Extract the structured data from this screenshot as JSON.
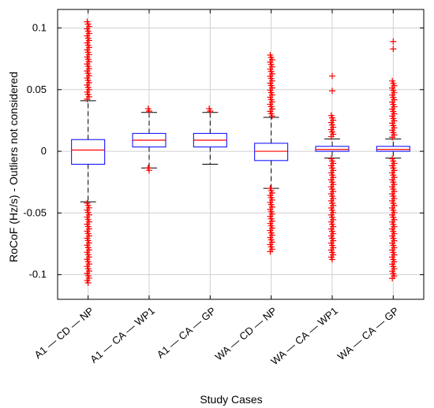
{
  "chart_data": {
    "type": "boxplot",
    "title": "",
    "xlabel": "Study Cases",
    "ylabel": "RoCoF (Hz/s) - Outliers not considered",
    "ylim": [
      -0.12,
      0.115
    ],
    "yticks": [
      -0.1,
      -0.05,
      0,
      0.05,
      0.1
    ],
    "ytick_labels": [
      "-0.1",
      "-0.05",
      "0",
      "0.05",
      "0.1"
    ],
    "grid": true,
    "categories": [
      "A1 — CD — NP",
      "A1 — CA — WP1",
      "A1 — CA — GP",
      "WA — CD — NP",
      "WA — CA — WP1",
      "WA — CA — GP"
    ],
    "boxes": [
      {
        "q1": -0.0105,
        "median": 0.001,
        "q3": 0.0095,
        "whisker_low": -0.041,
        "whisker_high": 0.041,
        "outlier_low_max": -0.042,
        "outlier_low_min": -0.108,
        "outlier_high_min": 0.042,
        "outlier_high_max": 0.105
      },
      {
        "q1": 0.0035,
        "median": 0.009,
        "q3": 0.0145,
        "whisker_low": -0.0135,
        "whisker_high": 0.0315,
        "outlier_low_max": -0.0135,
        "outlier_low_min": -0.0165,
        "outlier_high_min": 0.0315,
        "outlier_high_max": 0.0345
      },
      {
        "q1": 0.0035,
        "median": 0.009,
        "q3": 0.0145,
        "whisker_low": -0.0105,
        "whisker_high": 0.0315,
        "outlier_low_max": null,
        "outlier_low_min": null,
        "outlier_high_min": 0.0315,
        "outlier_high_max": 0.0345
      },
      {
        "q1": -0.0075,
        "median": 0.0,
        "q3": 0.0065,
        "whisker_low": -0.03,
        "whisker_high": 0.0275,
        "outlier_low_max": -0.03,
        "outlier_low_min": -0.083,
        "outlier_high_min": 0.0275,
        "outlier_high_max": 0.078
      },
      {
        "q1": 0.0,
        "median": 0.0015,
        "q3": 0.004,
        "whisker_low": -0.0055,
        "whisker_high": 0.01,
        "outlier_low_max": -0.006,
        "outlier_low_min": -0.088,
        "outlier_high_min": 0.011,
        "outlier_high_max": 0.029,
        "extra_outliers": [
          0.049,
          0.061
        ]
      },
      {
        "q1": 0.0,
        "median": 0.0015,
        "q3": 0.004,
        "whisker_low": -0.0055,
        "whisker_high": 0.01,
        "outlier_low_max": -0.006,
        "outlier_low_min": -0.104,
        "outlier_high_min": 0.011,
        "outlier_high_max": 0.057,
        "extra_outliers": [
          0.083,
          0.089
        ]
      }
    ],
    "colors": {
      "box": "#0000ff",
      "median": "#ff0000",
      "outlier": "#ff0000",
      "whisker": "#000000",
      "grid": "#d0d0d0",
      "axis": "#000000"
    }
  }
}
